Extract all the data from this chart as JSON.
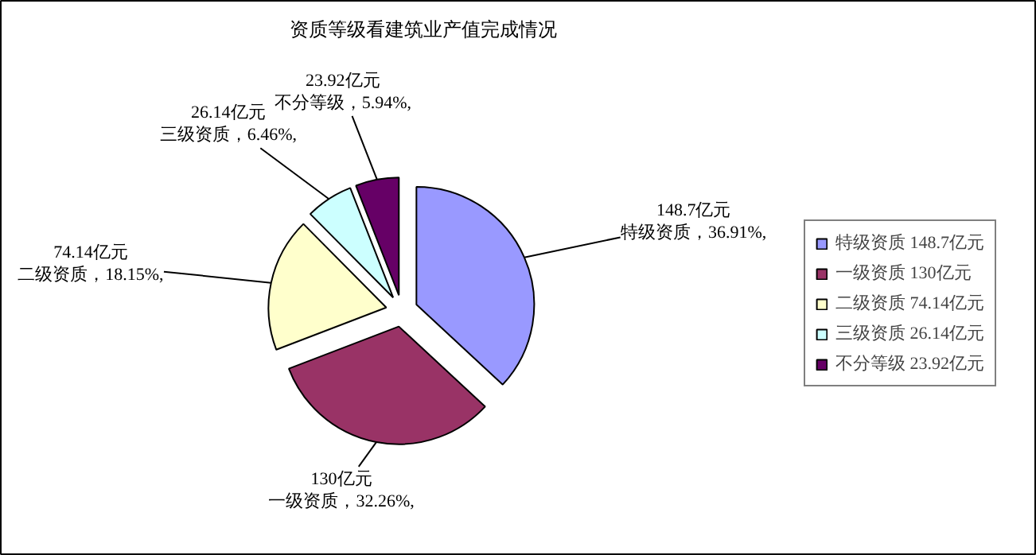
{
  "chart_data": {
    "type": "pie",
    "title": "资质等级看建筑业产值完成情况",
    "categories": [
      "特级资质 148.7亿元",
      "一级资质 130亿元",
      "二级资质 74.14亿元",
      "三级资质 26.14亿元",
      "不分等级 23.92亿元"
    ],
    "values": [
      148.7,
      130,
      74.14,
      26.14,
      23.92
    ],
    "colors": [
      "#9999ff",
      "#993366",
      "#ffffcc",
      "#ccffff",
      "#660066"
    ],
    "value_labels": [
      "148.7亿元特级资质，36.91%,",
      "130亿元一级资质，32.26%,",
      "74.14亿元二级资质，18.15%,",
      "26.14亿元三级资质，6.46%,",
      "23.92亿元不分等级，5.94%,"
    ],
    "legend": "right"
  }
}
